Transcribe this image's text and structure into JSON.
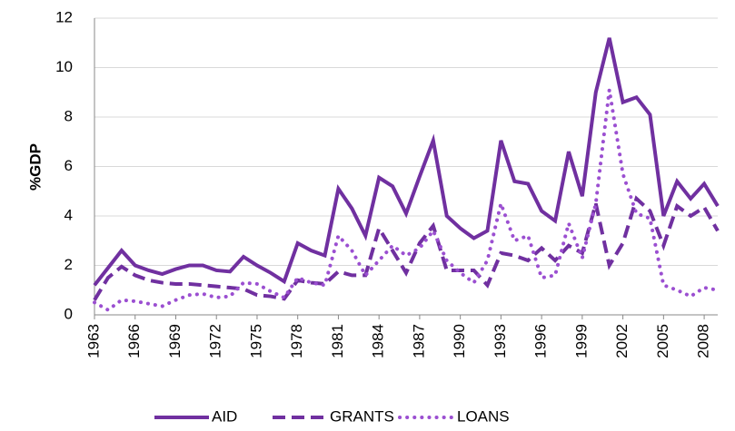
{
  "chart_data": {
    "type": "line",
    "y_label": "%GDP",
    "x": [
      1963,
      1964,
      1965,
      1966,
      1967,
      1968,
      1969,
      1970,
      1971,
      1972,
      1973,
      1974,
      1975,
      1976,
      1977,
      1978,
      1979,
      1980,
      1981,
      1982,
      1983,
      1984,
      1985,
      1986,
      1987,
      1988,
      1989,
      1990,
      1991,
      1992,
      1993,
      1994,
      1995,
      1996,
      1997,
      1998,
      1999,
      2000,
      2001,
      2002,
      2003,
      2004,
      2005,
      2006,
      2007,
      2008,
      2009
    ],
    "xlim": [
      1963,
      2009
    ],
    "xticks": [
      1963,
      1966,
      1969,
      1972,
      1975,
      1978,
      1981,
      1984,
      1987,
      1990,
      1993,
      1996,
      1999,
      2002,
      2005,
      2008
    ],
    "ylim": [
      0,
      12
    ],
    "yticks": [
      0,
      2,
      4,
      6,
      8,
      10,
      12
    ],
    "grid": true,
    "legend": "bottom",
    "series": [
      {
        "name": "AID",
        "color": "#7030a0",
        "dash": "solid",
        "values": [
          1.2,
          1.9,
          2.6,
          2.0,
          1.8,
          1.65,
          1.85,
          2.0,
          2.0,
          1.8,
          1.75,
          2.35,
          2.0,
          1.7,
          1.35,
          2.9,
          2.6,
          2.4,
          5.1,
          4.3,
          3.2,
          5.55,
          5.2,
          4.1,
          5.6,
          7.05,
          4.0,
          3.5,
          3.1,
          3.4,
          7.05,
          5.4,
          5.3,
          4.2,
          3.8,
          6.6,
          4.8,
          9.0,
          11.2,
          8.6,
          8.8,
          8.1,
          4.0,
          5.4,
          4.7,
          5.3,
          4.4
        ]
      },
      {
        "name": "GRANTS",
        "color": "#7030a0",
        "dash": "dashed",
        "values": [
          0.6,
          1.5,
          1.95,
          1.6,
          1.4,
          1.3,
          1.25,
          1.25,
          1.2,
          1.15,
          1.1,
          1.05,
          0.8,
          0.75,
          0.65,
          1.4,
          1.3,
          1.25,
          1.75,
          1.6,
          1.6,
          3.5,
          2.6,
          1.7,
          2.9,
          3.6,
          1.8,
          1.8,
          1.8,
          1.2,
          2.5,
          2.4,
          2.2,
          2.7,
          2.2,
          2.8,
          2.5,
          4.5,
          2.0,
          2.9,
          4.7,
          4.2,
          2.8,
          4.4,
          4.0,
          4.35,
          3.4
        ]
      },
      {
        "name": "LOANS",
        "color": "#9b4fd1",
        "dash": "dotted",
        "values": [
          0.5,
          0.2,
          0.6,
          0.55,
          0.45,
          0.35,
          0.6,
          0.8,
          0.85,
          0.7,
          0.75,
          1.3,
          1.25,
          0.95,
          0.7,
          1.5,
          1.3,
          1.2,
          3.2,
          2.6,
          1.6,
          2.2,
          2.8,
          2.4,
          2.7,
          3.4,
          2.2,
          1.7,
          1.3,
          2.2,
          4.5,
          3.0,
          3.2,
          1.5,
          1.6,
          3.7,
          2.3,
          4.5,
          9.1,
          5.7,
          4.1,
          3.9,
          1.2,
          1.0,
          0.75,
          1.1,
          1.0
        ]
      }
    ]
  }
}
